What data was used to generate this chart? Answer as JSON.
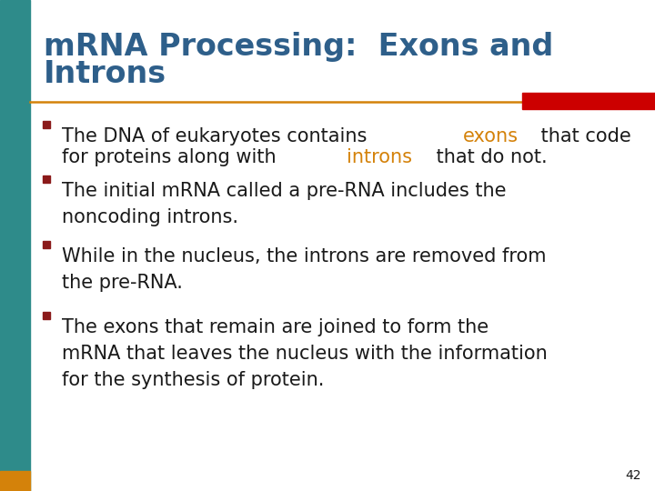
{
  "title_line1": "mRNA Processing:  Exons and",
  "title_line2": "Introns",
  "title_color": "#2E5F8A",
  "background_color": "#FFFFFF",
  "left_bar_color": "#2E8B8A",
  "left_bar_bottom_color": "#D4820A",
  "separator_line_color": "#D4820A",
  "red_box_color": "#CC0000",
  "bullet_color": "#8B1A1A",
  "page_number": "42",
  "text_color": "#1A1A1A",
  "highlight_color": "#D4820A",
  "font_size_title": 24,
  "font_size_body": 15,
  "bullet1_line1_parts": [
    [
      "The DNA of eukaryotes contains ",
      "#1A1A1A"
    ],
    [
      "exons",
      "#D4820A"
    ],
    [
      " that code",
      "#1A1A1A"
    ]
  ],
  "bullet1_line2_parts": [
    [
      "for proteins along with ",
      "#1A1A1A"
    ],
    [
      "introns",
      "#D4820A"
    ],
    [
      " that do not.",
      "#1A1A1A"
    ]
  ],
  "bullet2_text": "The initial mRNA called a pre-RNA includes the\nnoncoding introns.",
  "bullet3_text": "While in the nucleus, the introns are removed from\nthe pre-RNA.",
  "bullet4_text": "The exons that remain are joined to form the\nmRNA that leaves the nucleus with the information\nfor the synthesis of protein."
}
